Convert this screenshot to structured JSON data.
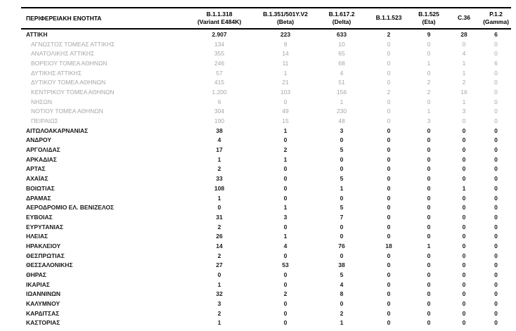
{
  "table": {
    "header": {
      "region_label": "ΠΕΡΙΦΕΡΕΙΑΚΗ ΕΝΟΤΗΤΑ",
      "columns": [
        {
          "line1": "B.1.1.318",
          "line2": "(Variant E484K)"
        },
        {
          "line1": "B.1.351/501Y.V2",
          "line2": "(Beta)"
        },
        {
          "line1": "B.1.617.2",
          "line2": "(Delta)"
        },
        {
          "line1": "B.1.1.523",
          "line2": ""
        },
        {
          "line1": "B.1.525",
          "line2": "(Eta)"
        },
        {
          "line1": "C.36",
          "line2": ""
        },
        {
          "line1": "P.1.2",
          "line2": "(Gamma)"
        }
      ]
    },
    "rows": [
      {
        "region": "ΑΤΤΙΚΗ",
        "style": "primary",
        "values": [
          "2.907",
          "223",
          "633",
          "2",
          "9",
          "28",
          "6"
        ]
      },
      {
        "region": "ΑΓΝΩΣΤΟΣ ΤΟΜΕΑΣ ΑΤΤΙΚΗΣ",
        "style": "sub",
        "values": [
          "134",
          "9",
          "10",
          "0",
          "0",
          "0",
          "0"
        ]
      },
      {
        "region": "ΑΝΑΤΟΛΙΚΗΣ ΑΤΤΙΚΗΣ",
        "style": "sub",
        "values": [
          "355",
          "14",
          "65",
          "0",
          "0",
          "4",
          "0"
        ]
      },
      {
        "region": "ΒΟΡΕΙΟΥ ΤΟΜΕΑ ΑΘΗΝΩΝ",
        "style": "sub",
        "values": [
          "246",
          "11",
          "68",
          "0",
          "1",
          "1",
          "6"
        ]
      },
      {
        "region": "ΔΥΤΙΚΗΣ ΑΤΤΙΚΗΣ",
        "style": "sub",
        "values": [
          "57",
          "1",
          "4",
          "0",
          "0",
          "1",
          "0"
        ]
      },
      {
        "region": "ΔΥΤΙΚΟΥ ΤΟΜΕΑ ΑΘΗΝΩΝ",
        "style": "sub",
        "values": [
          "415",
          "21",
          "51",
          "0",
          "2",
          "2",
          "0"
        ]
      },
      {
        "region": "ΚΕΝΤΡΙΚΟΥ ΤΟΜΕΑ ΑΘΗΝΩΝ",
        "style": "sub",
        "values": [
          "1.200",
          "103",
          "156",
          "2",
          "2",
          "16",
          "0"
        ]
      },
      {
        "region": "ΝΗΣΩΝ",
        "style": "sub",
        "values": [
          "6",
          "0",
          "1",
          "0",
          "0",
          "1",
          "0"
        ]
      },
      {
        "region": "ΝΟΤΙΟΥ ΤΟΜΕΑ ΑΘΗΝΩΝ",
        "style": "sub",
        "values": [
          "304",
          "49",
          "230",
          "0",
          "1",
          "3",
          "0"
        ]
      },
      {
        "region": "ΠΕΙΡΑΙΩΣ",
        "style": "sub",
        "values": [
          "190",
          "15",
          "48",
          "0",
          "3",
          "0",
          "0"
        ]
      },
      {
        "region": "ΑΙΤΩΛΟΑΚΑΡΝΑΝΙΑΣ",
        "style": "primary",
        "values": [
          "38",
          "1",
          "3",
          "0",
          "0",
          "0",
          "0"
        ]
      },
      {
        "region": "ΑΝΔΡΟΥ",
        "style": "primary",
        "values": [
          "4",
          "0",
          "0",
          "0",
          "0",
          "0",
          "0"
        ]
      },
      {
        "region": "ΑΡΓΟΛΙΔΑΣ",
        "style": "primary",
        "values": [
          "17",
          "2",
          "5",
          "0",
          "0",
          "0",
          "0"
        ]
      },
      {
        "region": "ΑΡΚΑΔΙΑΣ",
        "style": "primary",
        "values": [
          "1",
          "1",
          "0",
          "0",
          "0",
          "0",
          "0"
        ]
      },
      {
        "region": "ΑΡΤΑΣ",
        "style": "primary",
        "values": [
          "2",
          "0",
          "0",
          "0",
          "0",
          "0",
          "0"
        ]
      },
      {
        "region": "ΑΧΑΪΑΣ",
        "style": "primary",
        "values": [
          "33",
          "0",
          "5",
          "0",
          "0",
          "0",
          "0"
        ]
      },
      {
        "region": "ΒΟΙΩΤΙΑΣ",
        "style": "primary",
        "values": [
          "108",
          "0",
          "1",
          "0",
          "0",
          "1",
          "0"
        ]
      },
      {
        "region": "ΔΡΑΜΑΣ",
        "style": "primary",
        "values": [
          "1",
          "0",
          "0",
          "0",
          "0",
          "0",
          "0"
        ]
      },
      {
        "region": "ΑΕΡΟΔΡΟΜΙΟ ΕΛ. ΒΕΝΙΖΕΛΟΣ",
        "style": "primary",
        "values": [
          "0",
          "1",
          "5",
          "0",
          "0",
          "0",
          "0"
        ]
      },
      {
        "region": "ΕΥΒΟΙΑΣ",
        "style": "primary",
        "values": [
          "31",
          "3",
          "7",
          "0",
          "0",
          "0",
          "0"
        ]
      },
      {
        "region": "ΕΥΡΥΤΑΝΙΑΣ",
        "style": "primary",
        "values": [
          "2",
          "0",
          "0",
          "0",
          "0",
          "0",
          "0"
        ]
      },
      {
        "region": "ΗΛΕΙΑΣ",
        "style": "primary",
        "values": [
          "26",
          "1",
          "0",
          "0",
          "0",
          "0",
          "0"
        ]
      },
      {
        "region": "ΗΡΑΚΛΕΙΟΥ",
        "style": "primary",
        "values": [
          "14",
          "4",
          "76",
          "18",
          "1",
          "0",
          "0"
        ]
      },
      {
        "region": "ΘΕΣΠΡΩΤΙΑΣ",
        "style": "primary",
        "values": [
          "2",
          "0",
          "0",
          "0",
          "0",
          "0",
          "0"
        ]
      },
      {
        "region": "ΘΕΣΣΑΛΟΝΙΚΗΣ",
        "style": "primary",
        "values": [
          "27",
          "53",
          "38",
          "0",
          "0",
          "0",
          "0"
        ]
      },
      {
        "region": "ΘΗΡΑΣ",
        "style": "primary",
        "values": [
          "0",
          "0",
          "5",
          "0",
          "0",
          "0",
          "0"
        ]
      },
      {
        "region": "ΙΚΑΡΙΑΣ",
        "style": "primary",
        "values": [
          "1",
          "0",
          "4",
          "0",
          "0",
          "0",
          "0"
        ]
      },
      {
        "region": "ΙΩΑΝΝΙΝΩΝ",
        "style": "primary",
        "values": [
          "32",
          "2",
          "8",
          "0",
          "0",
          "0",
          "0"
        ]
      },
      {
        "region": "ΚΑΛΥΜΝΟΥ",
        "style": "primary",
        "values": [
          "3",
          "0",
          "0",
          "0",
          "0",
          "0",
          "0"
        ]
      },
      {
        "region": "ΚΑΡΔΙΤΣΑΣ",
        "style": "primary",
        "values": [
          "2",
          "0",
          "2",
          "0",
          "0",
          "0",
          "0"
        ]
      },
      {
        "region": "ΚΑΣΤΟΡΙΑΣ",
        "style": "primary",
        "values": [
          "1",
          "0",
          "1",
          "0",
          "0",
          "0",
          "0"
        ]
      }
    ],
    "colors": {
      "primary_text": "#1a1a1a",
      "sub_text": "#a6a6a6",
      "rule": "#000000",
      "background": "#ffffff"
    }
  }
}
